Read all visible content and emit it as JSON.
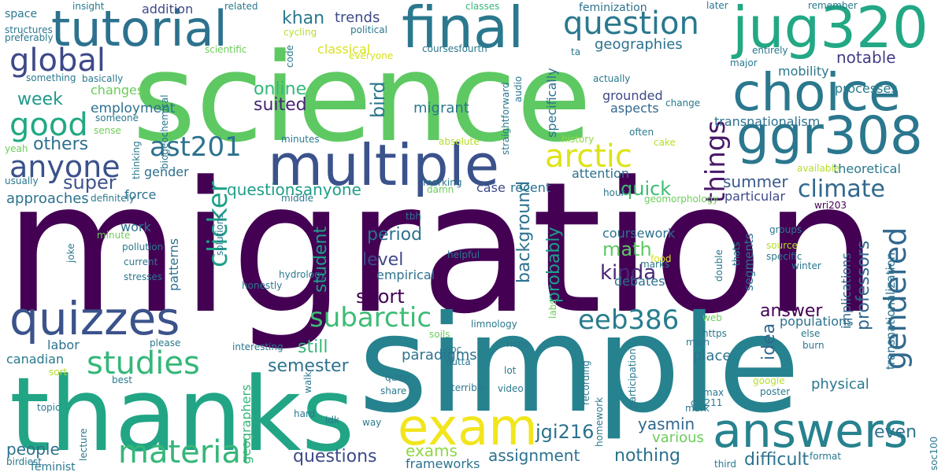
{
  "words": [
    {
      "text": "migration",
      "color": "#440154"
    },
    {
      "text": "simple",
      "color": "#26828e"
    },
    {
      "text": "science",
      "color": "#5ec962"
    },
    {
      "text": "thanks",
      "color": "#21a585"
    },
    {
      "text": "multiple",
      "color": "#3b528b"
    },
    {
      "text": "final",
      "color": "#2a788e"
    },
    {
      "text": "tutorial",
      "color": "#2c728e"
    },
    {
      "text": "jug320",
      "color": "#22a884"
    },
    {
      "text": "ggr308",
      "color": "#2a778e"
    },
    {
      "text": "choice",
      "color": "#2a788e"
    },
    {
      "text": "question",
      "color": "#2a788e"
    },
    {
      "text": "answers",
      "color": "#26828e"
    },
    {
      "text": "exam",
      "color": "#f1e51d"
    },
    {
      "text": "quizzes",
      "color": "#3b528b"
    },
    {
      "text": "global",
      "color": "#3e4989"
    },
    {
      "text": "good",
      "color": "#22a884"
    },
    {
      "text": "anyone",
      "color": "#3b528b"
    },
    {
      "text": "ast201",
      "color": "#2c728e"
    },
    {
      "text": "arctic",
      "color": "#dde318"
    },
    {
      "text": "clicker",
      "color": "#1fa088"
    },
    {
      "text": "things",
      "color": "#48186a"
    },
    {
      "text": "gendered",
      "color": "#31688e"
    },
    {
      "text": "climate",
      "color": "#31688e"
    },
    {
      "text": "studies",
      "color": "#35b779"
    },
    {
      "text": "material",
      "color": "#35b779"
    },
    {
      "text": "subarctic",
      "color": "#3dbc74"
    },
    {
      "text": "eeb386",
      "color": "#287d8e"
    },
    {
      "text": "online",
      "color": "#35b779"
    },
    {
      "text": "suited",
      "color": "#482475"
    },
    {
      "text": "khan",
      "color": "#2a788e"
    },
    {
      "text": "trends",
      "color": "#3e4989"
    },
    {
      "text": "geographies",
      "color": "#2c728e"
    },
    {
      "text": "notable",
      "color": "#433e85"
    },
    {
      "text": "mobility",
      "color": "#2a788e"
    },
    {
      "text": "processes",
      "color": "#287d8e"
    },
    {
      "text": "week",
      "color": "#1f988b"
    },
    {
      "text": "others",
      "color": "#2c728e"
    },
    {
      "text": "super",
      "color": "#3b528b"
    },
    {
      "text": "approaches",
      "color": "#2c728e"
    },
    {
      "text": "employment",
      "color": "#2c728e"
    },
    {
      "text": "changes",
      "color": "#6ccd5a"
    },
    {
      "text": "migrant",
      "color": "#2a788e"
    },
    {
      "text": "bird",
      "color": "#2a788e"
    },
    {
      "text": "grounded",
      "color": "#3e4989"
    },
    {
      "text": "aspects",
      "color": "#31688e"
    },
    {
      "text": "transnationalism",
      "color": "#2c728e"
    },
    {
      "text": "quick",
      "color": "#3dbc74"
    },
    {
      "text": "questionsanyone",
      "color": "#1f9e89"
    },
    {
      "text": "summer",
      "color": "#38588c"
    },
    {
      "text": "particular",
      "color": "#3e4989"
    },
    {
      "text": "theoretical",
      "color": "#2a788e"
    },
    {
      "text": "period",
      "color": "#2c728e"
    },
    {
      "text": "level",
      "color": "#3e4989"
    },
    {
      "text": "math",
      "color": "#5ec962"
    },
    {
      "text": "kinda",
      "color": "#482878"
    },
    {
      "text": "student",
      "color": "#1fa088"
    },
    {
      "text": "short",
      "color": "#440154"
    },
    {
      "text": "coursework",
      "color": "#2c728e"
    },
    {
      "text": "debates",
      "color": "#2c728e"
    },
    {
      "text": "probably",
      "color": "#1fa088"
    },
    {
      "text": "background",
      "color": "#2c728e"
    },
    {
      "text": "idea",
      "color": "#31688e"
    },
    {
      "text": "answer",
      "color": "#440154"
    },
    {
      "text": "populations",
      "color": "#2c728e"
    },
    {
      "text": "professors",
      "color": "#31688e"
    },
    {
      "text": "transnationalization",
      "color": "#2c728e"
    },
    {
      "text": "interventions",
      "color": "#440154"
    },
    {
      "text": "implications",
      "color": "#31688e"
    },
    {
      "text": "segments",
      "color": "#2c728e"
    },
    {
      "text": "still",
      "color": "#35b779"
    },
    {
      "text": "semester",
      "color": "#2c728e"
    },
    {
      "text": "paradigms",
      "color": "#2c728e"
    },
    {
      "text": "place",
      "color": "#2c728e"
    },
    {
      "text": "physical",
      "color": "#2a788e"
    },
    {
      "text": "jgi216",
      "color": "#2c728e"
    },
    {
      "text": "yasmin",
      "color": "#31688e"
    },
    {
      "text": "various",
      "color": "#6ccd5a"
    },
    {
      "text": "exams",
      "color": "#90d743"
    },
    {
      "text": "questions",
      "color": "#3e4989"
    },
    {
      "text": "assignment",
      "color": "#2c728e"
    },
    {
      "text": "nothing",
      "color": "#2c728e"
    },
    {
      "text": "difficult",
      "color": "#2c728e"
    },
    {
      "text": "even",
      "color": "#2c728e"
    },
    {
      "text": "people",
      "color": "#2c728e"
    },
    {
      "text": "canadian",
      "color": "#2a788e"
    },
    {
      "text": "labor",
      "color": "#2c728e"
    },
    {
      "text": "recent",
      "color": "#2c728e"
    },
    {
      "text": "case",
      "color": "#3e4989"
    },
    {
      "text": "attention",
      "color": "#2c728e"
    },
    {
      "text": "empirical",
      "color": "#2c728e"
    },
    {
      "text": "work",
      "color": "#2c728e"
    },
    {
      "text": "force",
      "color": "#2c728e"
    },
    {
      "text": "gender",
      "color": "#2c728e"
    },
    {
      "text": "patterns",
      "color": "#2c728e"
    },
    {
      "text": "frameworks",
      "color": "#2c728e"
    },
    {
      "text": "geographers",
      "color": "#35b779"
    },
    {
      "text": "feminization",
      "color": "#2c728e"
    },
    {
      "text": "classical",
      "color": "#d8e219"
    },
    {
      "text": "addition",
      "color": "#3e4989"
    },
    {
      "text": "specifically",
      "color": "#2c728e"
    },
    {
      "text": "history",
      "color": "#90d743"
    },
    {
      "text": "feminist",
      "color": "#2a788e"
    },
    {
      "text": "space",
      "color": "#2a788e"
    },
    {
      "text": "insight",
      "color": "#2a788e"
    },
    {
      "text": "related",
      "color": "#2a788e"
    },
    {
      "text": "political",
      "color": "#2a788e"
    },
    {
      "text": "cycling",
      "color": "#b5de2b"
    },
    {
      "text": "everyone",
      "color": "#d8e219"
    },
    {
      "text": "coursesfourth",
      "color": "#2a788e"
    },
    {
      "text": "classes",
      "color": "#35b779"
    },
    {
      "text": "later",
      "color": "#2a788e"
    },
    {
      "text": "remember",
      "color": "#2a788e"
    },
    {
      "text": "entirely",
      "color": "#2a788e"
    },
    {
      "text": "major",
      "color": "#2a788e"
    },
    {
      "text": "actually",
      "color": "#2a788e"
    },
    {
      "text": "change",
      "color": "#2a788e"
    },
    {
      "text": "often",
      "color": "#2a788e"
    },
    {
      "text": "cake",
      "color": "#b5de2b"
    },
    {
      "text": "hour",
      "color": "#2a788e"
    },
    {
      "text": "available",
      "color": "#b5de2b"
    },
    {
      "text": "structures",
      "color": "#2a788e"
    },
    {
      "text": "preferably",
      "color": "#2a788e"
    },
    {
      "text": "something",
      "color": "#2a788e"
    },
    {
      "text": "basically",
      "color": "#2a788e"
    },
    {
      "text": "scientific",
      "color": "#6ccd5a"
    },
    {
      "text": "code",
      "color": "#2a788e"
    },
    {
      "text": "ta",
      "color": "#2a788e"
    },
    {
      "text": "audio",
      "color": "#2a788e"
    },
    {
      "text": "someone",
      "color": "#2a788e"
    },
    {
      "text": "sense",
      "color": "#6ccd5a"
    },
    {
      "text": "biogeochemical",
      "color": "#2a788e"
    },
    {
      "text": "straightforward",
      "color": "#2a788e"
    },
    {
      "text": "thinking",
      "color": "#2a788e"
    },
    {
      "text": "absolute",
      "color": "#b5de2b"
    },
    {
      "text": "minutes",
      "color": "#2a788e"
    },
    {
      "text": "yeah",
      "color": "#6ccd5a"
    },
    {
      "text": "usually",
      "color": "#2a788e"
    },
    {
      "text": "definitely",
      "color": "#2a788e"
    },
    {
      "text": "marking",
      "color": "#2a788e"
    },
    {
      "text": "damn",
      "color": "#6ccd5a"
    },
    {
      "text": "middle",
      "color": "#2a788e"
    },
    {
      "text": "tbh",
      "color": "#2a788e"
    },
    {
      "text": "geomorphology",
      "color": "#6ccd5a"
    },
    {
      "text": "wri203",
      "color": "#440154"
    },
    {
      "text": "groups",
      "color": "#2a788e"
    },
    {
      "text": "minute",
      "color": "#6ccd5a"
    },
    {
      "text": "pollution",
      "color": "#2a788e"
    },
    {
      "text": "current",
      "color": "#2a788e"
    },
    {
      "text": "stresses",
      "color": "#2a788e"
    },
    {
      "text": "joke",
      "color": "#2a788e"
    },
    {
      "text": "solutions",
      "color": "#2a788e"
    },
    {
      "text": "helpful",
      "color": "#2a788e"
    },
    {
      "text": "marks",
      "color": "#2a788e"
    },
    {
      "text": "food",
      "color": "#d8e219"
    },
    {
      "text": "thats",
      "color": "#2a788e"
    },
    {
      "text": "source",
      "color": "#b5de2b"
    },
    {
      "text": "specific",
      "color": "#2a788e"
    },
    {
      "text": "winter",
      "color": "#2a788e"
    },
    {
      "text": "double",
      "color": "#2a788e"
    },
    {
      "text": "hydrology",
      "color": "#2a788e"
    },
    {
      "text": "honestly",
      "color": "#2a788e"
    },
    {
      "text": "limnology",
      "color": "#2a788e"
    },
    {
      "text": "labs",
      "color": "#6ccd5a"
    },
    {
      "text": "web",
      "color": "#6ccd5a"
    },
    {
      "text": "https",
      "color": "#2a788e"
    },
    {
      "text": "main",
      "color": "#2a788e"
    },
    {
      "text": "else",
      "color": "#2a788e"
    },
    {
      "text": "burn",
      "color": "#2a788e"
    },
    {
      "text": "interesting",
      "color": "#2a788e"
    },
    {
      "text": "please",
      "color": "#2a788e"
    },
    {
      "text": "soils",
      "color": "#6ccd5a"
    },
    {
      "text": "hope",
      "color": "#2a788e"
    },
    {
      "text": "soc",
      "color": "#2a788e"
    },
    {
      "text": "outta",
      "color": "#2a788e"
    },
    {
      "text": "lot",
      "color": "#2a788e"
    },
    {
      "text": "sort",
      "color": "#b5de2b"
    },
    {
      "text": "best",
      "color": "#2a788e"
    },
    {
      "text": "walk",
      "color": "#2a788e"
    },
    {
      "text": "quite",
      "color": "#2a788e"
    },
    {
      "text": "share",
      "color": "#2a788e"
    },
    {
      "text": "terrible",
      "color": "#2a788e"
    },
    {
      "text": "video",
      "color": "#2a788e"
    },
    {
      "text": "recording",
      "color": "#2a788e"
    },
    {
      "text": "participation",
      "color": "#2a788e"
    },
    {
      "text": "cin211",
      "color": "#2a788e"
    },
    {
      "text": "max",
      "color": "#2a788e"
    },
    {
      "text": "google",
      "color": "#b5de2b"
    },
    {
      "text": "poster",
      "color": "#2a788e"
    },
    {
      "text": "topic",
      "color": "#2a788e"
    },
    {
      "text": "hard",
      "color": "#2a788e"
    },
    {
      "text": "idk",
      "color": "#2a788e"
    },
    {
      "text": "way",
      "color": "#2a788e"
    },
    {
      "text": "mark",
      "color": "#2a788e"
    },
    {
      "text": "lecture",
      "color": "#2a788e"
    },
    {
      "text": "homework",
      "color": "#2a788e"
    },
    {
      "text": "birdiest",
      "color": "#2a788e"
    },
    {
      "text": "third",
      "color": "#2a788e"
    },
    {
      "text": "format",
      "color": "#2a788e"
    },
    {
      "text": "soc100",
      "color": "#2a788e"
    }
  ]
}
